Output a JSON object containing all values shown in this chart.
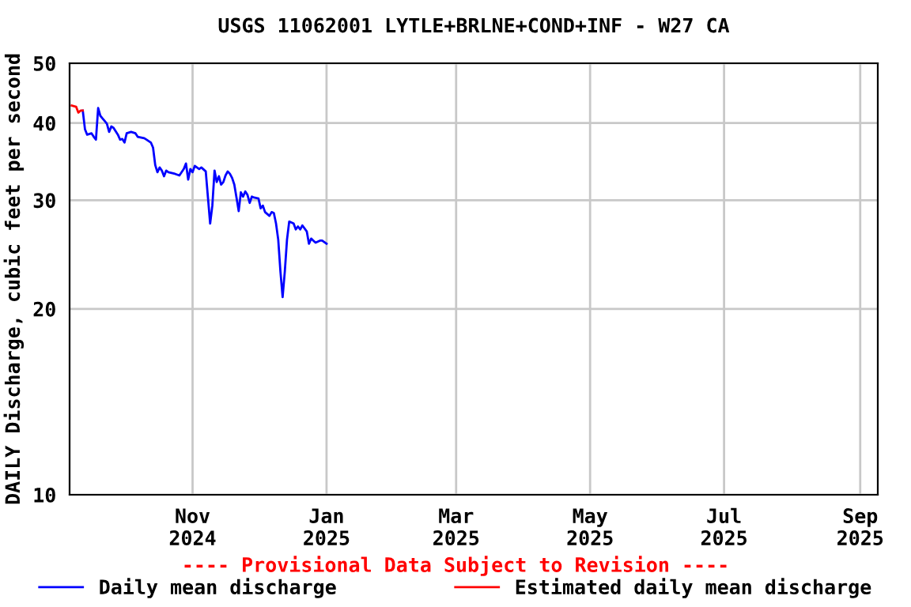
{
  "chart_data": {
    "type": "line",
    "title": "USGS 11062001 LYTLE+BRLNE+COND+INF - W27 CA",
    "ylabel": "DAILY Discharge, cubic feet per second",
    "annotations": [
      "---- Provisional Data Subject to Revision ----"
    ],
    "log": "y",
    "grid": true,
    "legend": "bottom",
    "marker": "none",
    "line_style": "solid",
    "xlim": [
      "2024-09-06",
      "2025-09-09"
    ],
    "ylim": [
      10,
      50
    ],
    "yticks": [
      10,
      20,
      30,
      40,
      50
    ],
    "xticks": [
      {
        "value": "2024-11-01",
        "label": "Nov\n2024"
      },
      {
        "value": "2025-01-01",
        "label": "Jan\n2025"
      },
      {
        "value": "2025-03-01",
        "label": "Mar\n2025"
      },
      {
        "value": "2025-05-01",
        "label": "May\n2025"
      },
      {
        "value": "2025-07-01",
        "label": "Jul\n2025"
      },
      {
        "value": "2025-09-01",
        "label": "Sep\n2025"
      }
    ],
    "series": [
      {
        "name": "Daily mean discharge",
        "color": "#0000ff",
        "x": [
          "2024-09-12",
          "2024-09-13",
          "2024-09-14",
          "2024-09-16",
          "2024-09-17",
          "2024-09-18",
          "2024-09-19",
          "2024-09-20",
          "2024-09-21",
          "2024-09-22",
          "2024-09-23",
          "2024-09-24",
          "2024-09-25",
          "2024-09-26",
          "2024-09-28",
          "2024-09-29",
          "2024-09-30",
          "2024-10-01",
          "2024-10-02",
          "2024-10-04",
          "2024-10-06",
          "2024-10-07",
          "2024-10-10",
          "2024-10-11",
          "2024-10-13",
          "2024-10-14",
          "2024-10-15",
          "2024-10-16",
          "2024-10-17",
          "2024-10-18",
          "2024-10-19",
          "2024-10-20",
          "2024-10-21",
          "2024-10-24",
          "2024-10-26",
          "2024-10-28",
          "2024-10-29",
          "2024-10-30",
          "2024-10-31",
          "2024-11-01",
          "2024-11-02",
          "2024-11-04",
          "2024-11-05",
          "2024-11-07",
          "2024-11-08",
          "2024-11-09",
          "2024-11-10",
          "2024-11-11",
          "2024-11-12",
          "2024-11-13",
          "2024-11-14",
          "2024-11-15",
          "2024-11-16",
          "2024-11-17",
          "2024-11-18",
          "2024-11-19",
          "2024-11-20",
          "2024-11-21",
          "2024-11-22",
          "2024-11-23",
          "2024-11-24",
          "2024-11-25",
          "2024-11-26",
          "2024-11-27",
          "2024-11-28",
          "2024-11-29",
          "2024-12-01",
          "2024-12-02",
          "2024-12-03",
          "2024-12-04",
          "2024-12-06",
          "2024-12-07",
          "2024-12-08",
          "2024-12-09",
          "2024-12-10",
          "2024-12-11",
          "2024-12-12",
          "2024-12-13",
          "2024-12-14",
          "2024-12-15",
          "2024-12-16",
          "2024-12-17",
          "2024-12-18",
          "2024-12-19",
          "2024-12-20",
          "2024-12-21",
          "2024-12-23",
          "2024-12-24",
          "2024-12-25",
          "2024-12-26",
          "2024-12-27",
          "2024-12-29",
          "2024-12-30",
          "2025-01-01"
        ],
        "values": [
          41.9,
          39.1,
          38.3,
          38.5,
          38.0,
          37.6,
          42.3,
          41.1,
          40.7,
          40.3,
          39.9,
          38.7,
          39.5,
          39.3,
          38.3,
          37.6,
          37.7,
          37.2,
          38.5,
          38.7,
          38.5,
          38.0,
          37.8,
          37.6,
          37.2,
          36.5,
          34.2,
          33.3,
          33.9,
          33.5,
          32.8,
          33.5,
          33.3,
          33.1,
          32.9,
          33.7,
          34.4,
          32.4,
          33.7,
          33.3,
          34.1,
          33.7,
          33.9,
          33.4,
          30.3,
          27.5,
          29.4,
          33.5,
          32.1,
          32.8,
          31.8,
          32.1,
          32.9,
          33.4,
          33.1,
          32.6,
          31.8,
          30.3,
          28.8,
          30.9,
          30.4,
          31.0,
          30.6,
          29.7,
          30.4,
          30.3,
          30.2,
          29.1,
          29.4,
          28.7,
          28.3,
          28.7,
          28.6,
          27.5,
          25.9,
          23.0,
          20.9,
          23.0,
          25.9,
          27.7,
          27.6,
          27.5,
          26.9,
          27.2,
          26.9,
          27.3,
          26.7,
          25.5,
          26.0,
          25.8,
          25.6,
          25.8,
          25.8,
          25.5
        ]
      },
      {
        "name": "Estimated daily mean discharge",
        "color": "#ff0000",
        "x": [
          "2024-09-07",
          "2024-09-09",
          "2024-09-10",
          "2024-09-11",
          "2024-09-12"
        ],
        "values": [
          42.7,
          42.5,
          41.6,
          41.9,
          41.9
        ]
      }
    ]
  }
}
